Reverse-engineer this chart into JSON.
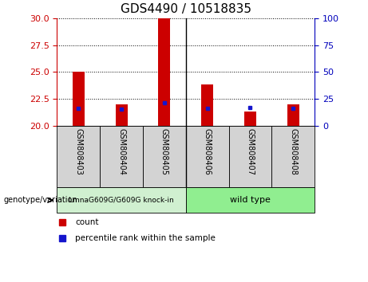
{
  "title": "GDS4490 / 10518835",
  "samples": [
    "GSM808403",
    "GSM808404",
    "GSM808405",
    "GSM808406",
    "GSM808407",
    "GSM808408"
  ],
  "group_label_left": "LmnaG609G/G609G knock-in",
  "group_label_right": "wild type",
  "bar_base": 20,
  "bar_tops": [
    25.0,
    22.0,
    30.0,
    23.8,
    21.3,
    22.0
  ],
  "blue_marker_positions": [
    21.6,
    21.5,
    22.1,
    21.6,
    21.7,
    21.6
  ],
  "ylim": [
    20,
    30
  ],
  "yticks_left": [
    20,
    22.5,
    25,
    27.5,
    30
  ],
  "yticks_right_labels": [
    "0",
    "25",
    "50",
    "75",
    "100"
  ],
  "bar_color": "#CC0000",
  "blue_color": "#1515CC",
  "left_axis_color": "#CC0000",
  "right_axis_color": "#0000BB",
  "title_fontsize": 11,
  "tick_fontsize": 8,
  "group_box_color_left": "#d0f0d0",
  "group_box_color_right": "#90EE90",
  "legend_count_label": "count",
  "legend_percentile_label": "percentile rank within the sample",
  "genotype_label": "genotype/variation"
}
